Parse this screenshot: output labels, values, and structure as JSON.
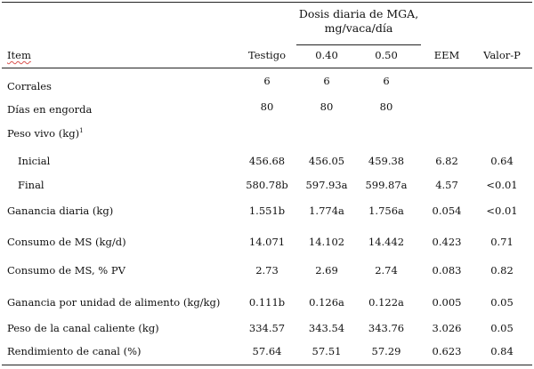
{
  "header": {
    "group_title_line1": "Dosis diaria de MGA,",
    "group_title_line2": "mg/vaca/día",
    "item": "Item",
    "columns": [
      "Testigo",
      "0.40",
      "0.50",
      "EEM",
      "Valor-P"
    ]
  },
  "rows": [
    {
      "label": "Corrales",
      "values": [
        "6",
        "6",
        "6",
        "",
        ""
      ]
    },
    {
      "label": "Días en engorda",
      "values": [
        "80",
        "80",
        "80",
        "",
        ""
      ]
    },
    {
      "label": "Peso vivo (kg)",
      "sup": "1",
      "values": [
        "",
        "",
        "",
        "",
        ""
      ]
    },
    {
      "label": "Inicial",
      "indent": true,
      "values": [
        "456.68",
        "456.05",
        "459.38",
        "6.82",
        "0.64"
      ]
    },
    {
      "label": "Final",
      "indent": true,
      "values": [
        "580.78b",
        "597.93a",
        "599.87a",
        "4.57",
        "<0.01"
      ]
    },
    {
      "label": "Ganancia diaria (kg)",
      "values": [
        "1.551b",
        "1.774a",
        "1.756a",
        "0.054",
        "<0.01"
      ]
    },
    {
      "label": "Consumo de MS (kg/d)",
      "values": [
        "14.071",
        "14.102",
        "14.442",
        "0.423",
        "0.71"
      ]
    },
    {
      "label": "Consumo de MS, % PV",
      "values": [
        "2.73",
        "2.69",
        "2.74",
        "0.083",
        "0.82"
      ]
    },
    {
      "label": "Ganancia por unidad de alimento (kg/kg)",
      "values": [
        "0.111b",
        "0.126a",
        "0.122a",
        "0.005",
        "0.05"
      ]
    },
    {
      "label": "Peso de la canal caliente (kg)",
      "values": [
        "334.57",
        "343.54",
        "343.76",
        "3.026",
        "0.05"
      ]
    },
    {
      "label": "Rendimiento de canal (%)",
      "values": [
        "57.64",
        "57.51",
        "57.29",
        "0.623",
        "0.84"
      ]
    }
  ]
}
